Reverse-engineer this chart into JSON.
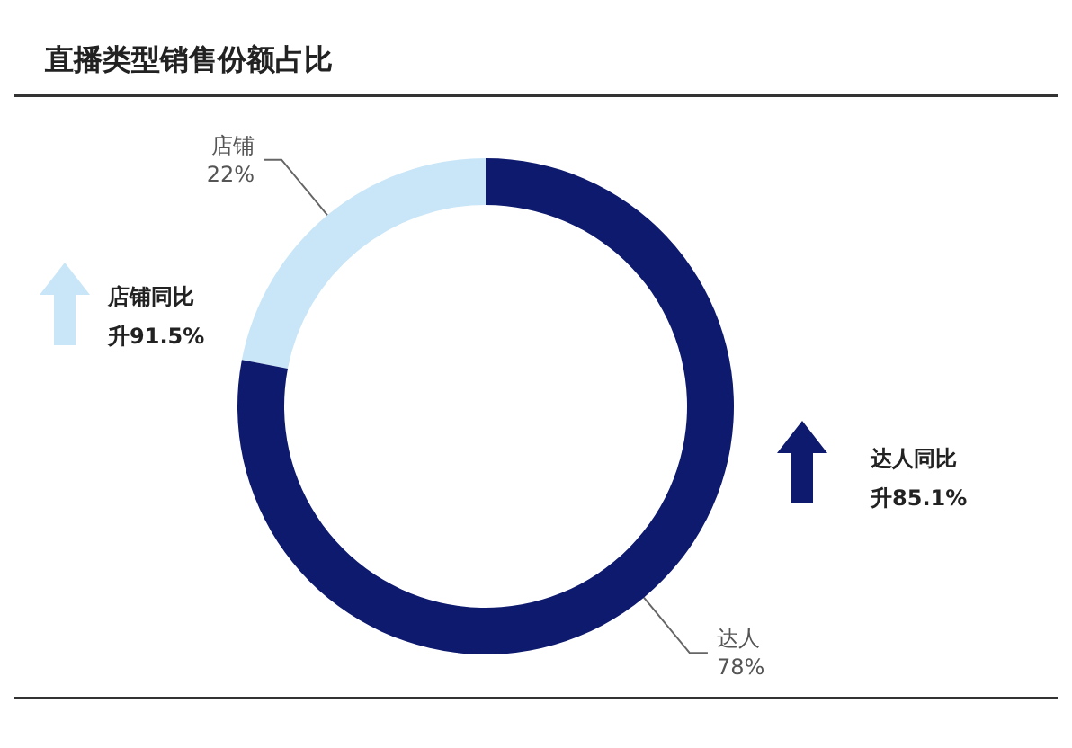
{
  "chart_data": {
    "type": "donut",
    "title": "直播类型销售份额占比",
    "categories": [
      "店铺",
      "达人"
    ],
    "values": [
      22,
      78
    ],
    "colors": [
      "#c9e6f8",
      "#0d1a6e"
    ],
    "annotations": [
      "店铺同比升91.5%",
      "达人同比升85.1%"
    ],
    "value_labels": [
      "22%",
      "78%"
    ],
    "legend": false
  }
}
